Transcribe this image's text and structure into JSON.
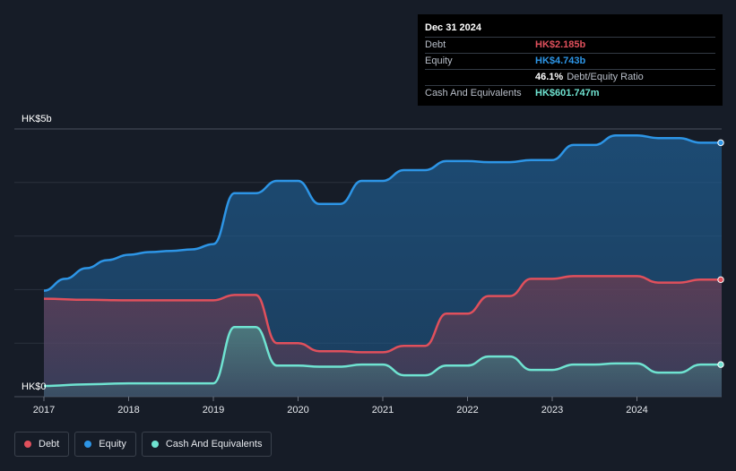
{
  "tooltip": {
    "date": "Dec 31 2024",
    "debt_label": "Debt",
    "debt_value": "HK$2.185b",
    "equity_label": "Equity",
    "equity_value": "HK$4.743b",
    "ratio_value": "46.1%",
    "ratio_label": "Debt/Equity Ratio",
    "cash_label": "Cash And Equivalents",
    "cash_value": "HK$601.747m"
  },
  "legend": [
    {
      "label": "Debt",
      "color": "#e0505c"
    },
    {
      "label": "Equity",
      "color": "#2d95e6"
    },
    {
      "label": "Cash And Equivalents",
      "color": "#6fe3d1"
    }
  ],
  "colors": {
    "debt": "#e0505c",
    "equity": "#2d95e6",
    "cash": "#6fe3d1",
    "background": "#161c27"
  },
  "chart_data": {
    "type": "area",
    "y_unit": "HK$ billions",
    "y_tick_labels": [
      "HK$0",
      "HK$5b"
    ],
    "ylim": [
      0,
      5
    ],
    "xlim": [
      2017.0,
      2025.0
    ],
    "x_ticks": [
      "2017",
      "2018",
      "2019",
      "2020",
      "2021",
      "2022",
      "2023",
      "2024"
    ],
    "grid": true,
    "legend_position": "bottom-left",
    "series": [
      {
        "name": "Debt",
        "x": [
          2017.0,
          2017.5,
          2018.0,
          2018.5,
          2019.0,
          2019.25,
          2019.5,
          2019.75,
          2020.0,
          2020.25,
          2020.5,
          2020.75,
          2021.0,
          2021.25,
          2021.5,
          2021.75,
          2022.0,
          2022.25,
          2022.5,
          2022.75,
          2023.0,
          2023.25,
          2023.5,
          2023.75,
          2024.0,
          2024.25,
          2024.5,
          2024.75,
          2025.0
        ],
        "values": [
          1.83,
          1.81,
          1.8,
          1.8,
          1.8,
          1.9,
          1.9,
          1.0,
          1.0,
          0.85,
          0.85,
          0.83,
          0.83,
          0.95,
          0.95,
          1.55,
          1.55,
          1.88,
          1.88,
          2.2,
          2.2,
          2.25,
          2.25,
          2.25,
          2.25,
          2.13,
          2.13,
          2.185,
          2.185
        ]
      },
      {
        "name": "Equity",
        "x": [
          2017.0,
          2017.25,
          2017.5,
          2017.75,
          2018.0,
          2018.25,
          2018.5,
          2018.75,
          2019.0,
          2019.25,
          2019.5,
          2019.75,
          2020.0,
          2020.25,
          2020.5,
          2020.75,
          2021.0,
          2021.25,
          2021.5,
          2021.75,
          2022.0,
          2022.25,
          2022.5,
          2022.75,
          2023.0,
          2023.25,
          2023.5,
          2023.75,
          2024.0,
          2024.25,
          2024.5,
          2024.75,
          2025.0
        ],
        "values": [
          1.98,
          2.2,
          2.4,
          2.55,
          2.65,
          2.7,
          2.72,
          2.75,
          2.85,
          3.8,
          3.8,
          4.03,
          4.03,
          3.6,
          3.6,
          4.03,
          4.03,
          4.23,
          4.23,
          4.4,
          4.4,
          4.38,
          4.38,
          4.42,
          4.42,
          4.7,
          4.7,
          4.88,
          4.88,
          4.83,
          4.83,
          4.743,
          4.743
        ]
      },
      {
        "name": "Cash And Equivalents",
        "x": [
          2017.0,
          2017.5,
          2018.0,
          2018.5,
          2019.0,
          2019.25,
          2019.5,
          2019.75,
          2020.0,
          2020.25,
          2020.5,
          2020.75,
          2021.0,
          2021.25,
          2021.5,
          2021.75,
          2022.0,
          2022.25,
          2022.5,
          2022.75,
          2023.0,
          2023.25,
          2023.5,
          2023.75,
          2024.0,
          2024.25,
          2024.5,
          2024.75,
          2025.0
        ],
        "values": [
          0.2,
          0.23,
          0.25,
          0.25,
          0.25,
          1.3,
          1.3,
          0.58,
          0.58,
          0.56,
          0.56,
          0.6,
          0.6,
          0.4,
          0.4,
          0.58,
          0.58,
          0.75,
          0.75,
          0.5,
          0.5,
          0.6,
          0.6,
          0.62,
          0.62,
          0.45,
          0.45,
          0.6,
          0.6
        ]
      }
    ]
  }
}
